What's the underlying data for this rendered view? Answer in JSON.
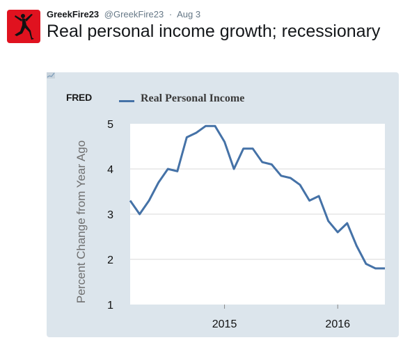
{
  "tweet": {
    "author_name": "GreekFire23",
    "author_handle": "@GreekFire23",
    "separator": "·",
    "date": "Aug 3",
    "text": "Real personal income growth; recessionary",
    "avatar_icon": "jumpman-logo-icon",
    "avatar_color": "#e0121f"
  },
  "chart_data": {
    "type": "line",
    "source_logo": "FRED",
    "ylabel": "Percent Change from Year Ago",
    "ylim": [
      1,
      5
    ],
    "yticks": [
      1,
      2,
      3,
      4,
      5
    ],
    "xticks": [
      "2015",
      "2016"
    ],
    "grid": true,
    "legend_position": "top-left",
    "line_color": "#4572a7",
    "series": [
      {
        "name": "Real Personal Income",
        "x": [
          "2014-03",
          "2014-04",
          "2014-05",
          "2014-06",
          "2014-07",
          "2014-08",
          "2014-09",
          "2014-10",
          "2014-11",
          "2014-12",
          "2015-01",
          "2015-02",
          "2015-03",
          "2015-04",
          "2015-05",
          "2015-06",
          "2015-07",
          "2015-08",
          "2015-09",
          "2015-10",
          "2015-11",
          "2015-12",
          "2016-01",
          "2016-02",
          "2016-03",
          "2016-04",
          "2016-05",
          "2016-06"
        ],
        "values": [
          3.3,
          3.0,
          3.3,
          3.7,
          4.0,
          3.95,
          4.7,
          4.8,
          4.95,
          4.95,
          4.6,
          4.0,
          4.45,
          4.45,
          4.15,
          4.1,
          3.85,
          3.8,
          3.65,
          3.3,
          3.4,
          2.85,
          2.6,
          2.8,
          2.3,
          1.9,
          1.8,
          1.8
        ]
      }
    ]
  }
}
